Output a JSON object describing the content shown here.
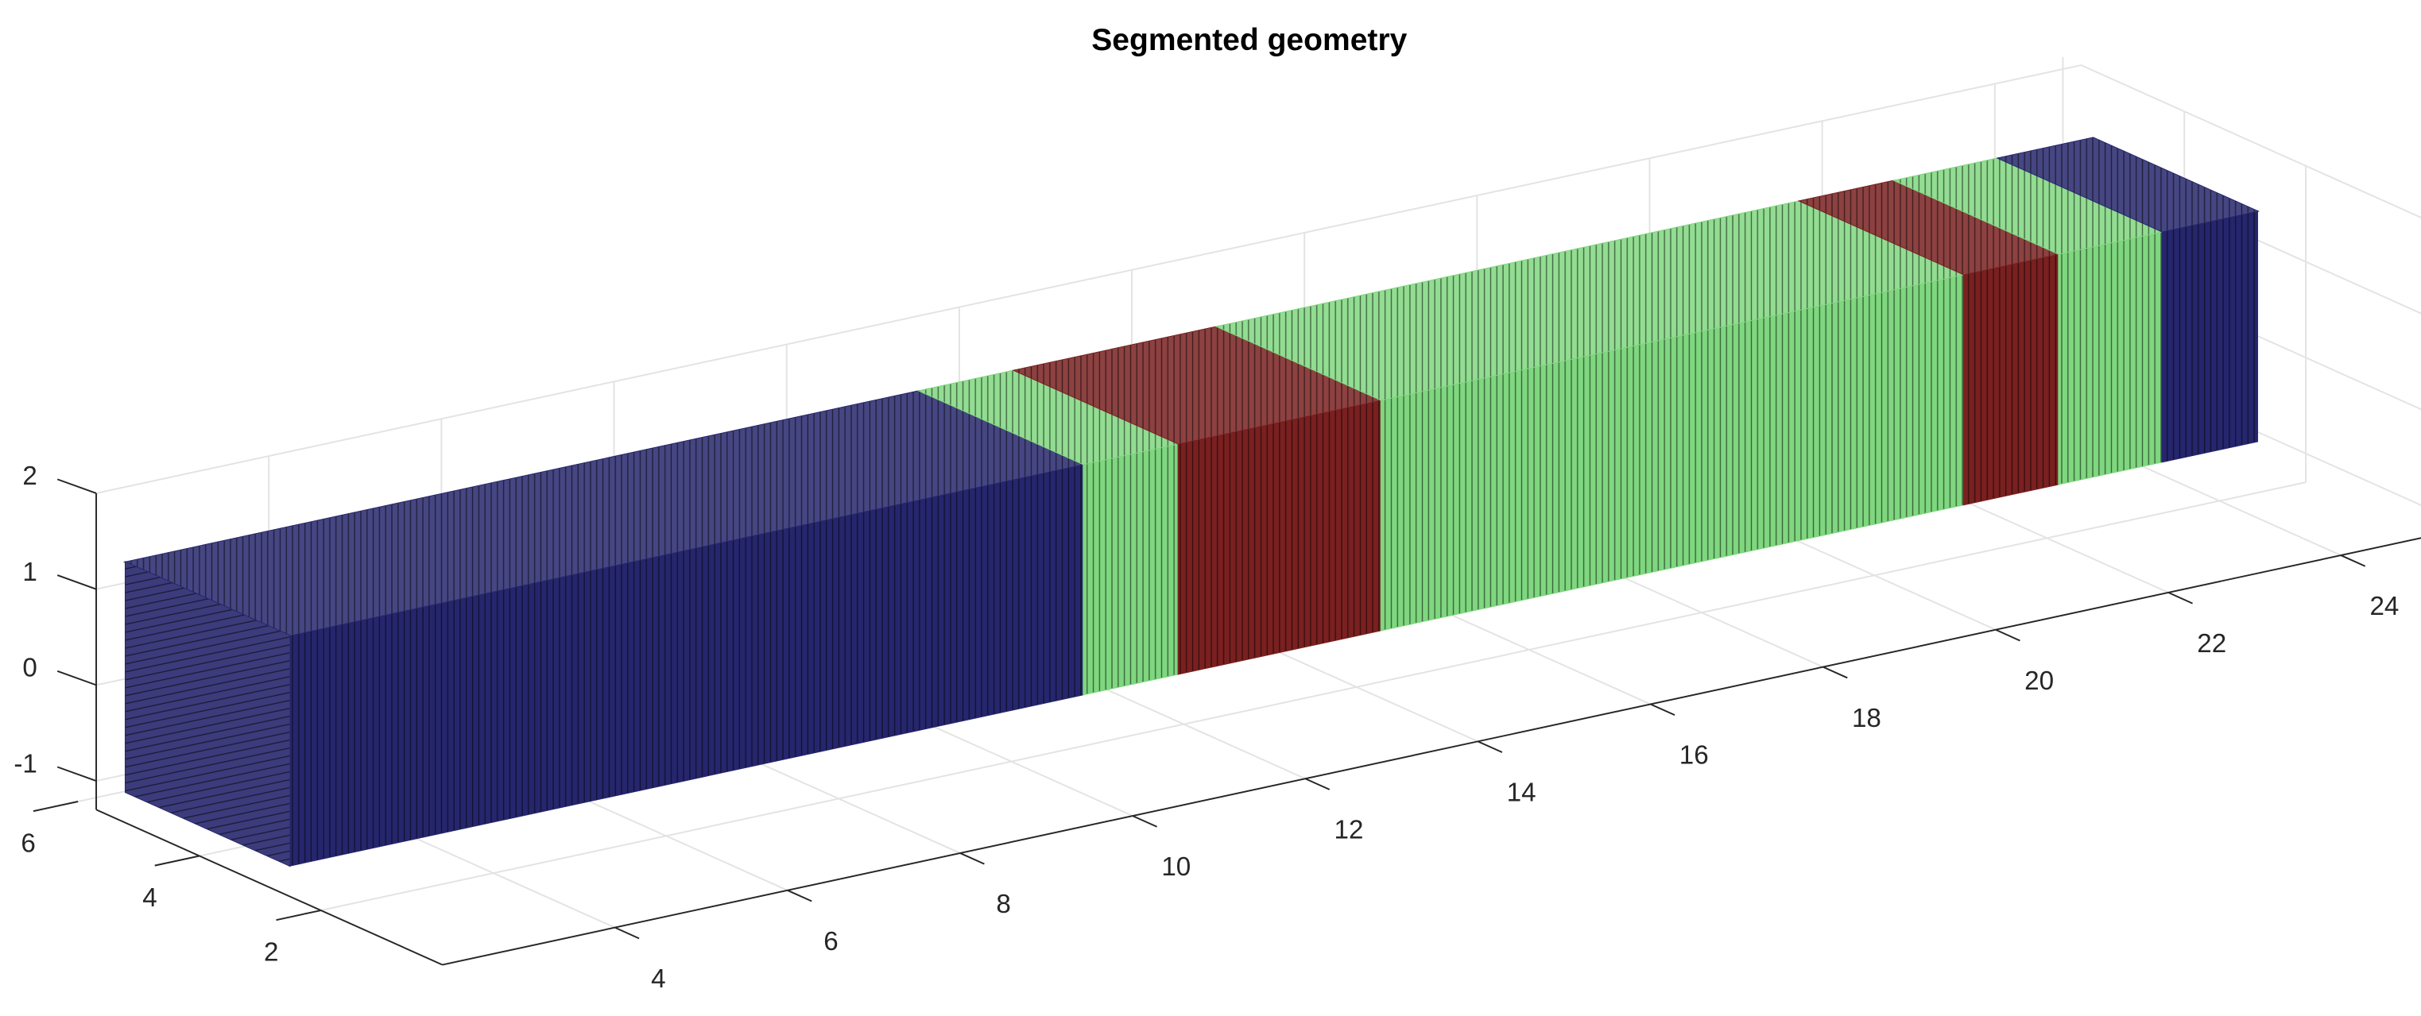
{
  "chart_data": {
    "type": "surface3d",
    "title": "Segmented geometry",
    "xlim": [
      2,
      25
    ],
    "ylim": [
      0,
      5.7
    ],
    "zlim": [
      -1.3,
      2
    ],
    "xticks": [
      4,
      6,
      8,
      10,
      12,
      14,
      16,
      18,
      20,
      22,
      24
    ],
    "yticks": [
      2,
      4,
      6
    ],
    "zticks": [
      -1,
      0,
      1,
      2
    ],
    "grid": true,
    "tube": {
      "y": [
        2.8,
        5.5
      ],
      "z": [
        -1.1,
        1.3
      ]
    },
    "segments": [
      {
        "color": "#26266e",
        "xrange": [
          2.2,
          11.4
        ]
      },
      {
        "color": "#7fd77f",
        "xrange": [
          11.4,
          12.5
        ]
      },
      {
        "color": "#7a2020",
        "xrange": [
          12.5,
          14.85
        ]
      },
      {
        "color": "#7fd77f",
        "xrange": [
          14.85,
          21.6
        ]
      },
      {
        "color": "#7a2020",
        "xrange": [
          21.6,
          22.7
        ]
      },
      {
        "color": "#7fd77f",
        "xrange": [
          22.7,
          23.9
        ]
      },
      {
        "color": "#26266e",
        "xrange": [
          23.9,
          25
        ]
      }
    ]
  }
}
